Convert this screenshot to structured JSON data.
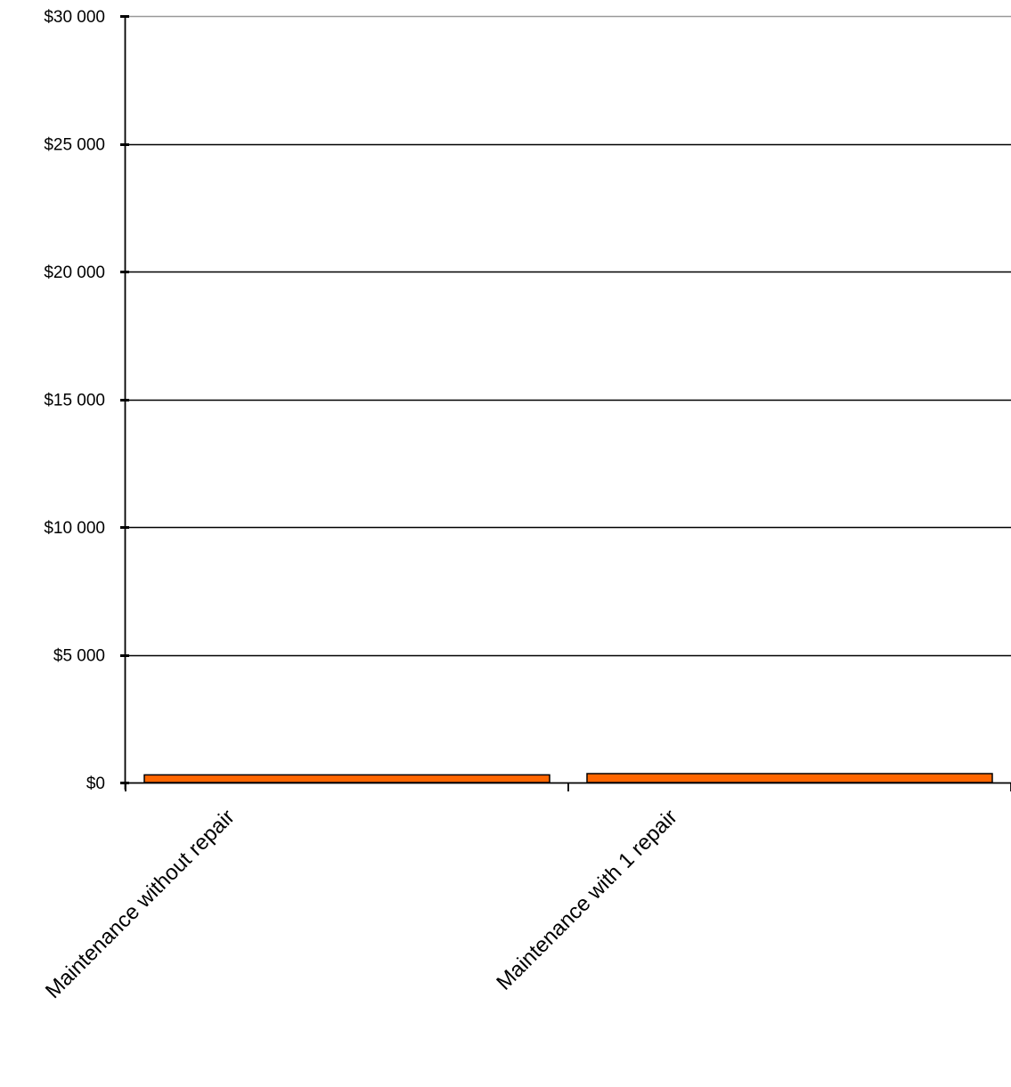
{
  "chart_data": {
    "type": "bar",
    "title": "",
    "xlabel": "",
    "ylabel": "",
    "categories": [
      "Maintenance without repair",
      "Maintenance with 1 repair"
    ],
    "series": [
      {
        "values": [
          300,
          350
        ]
      }
    ],
    "ylim": [
      0,
      30000
    ],
    "ytick_values": [
      0,
      5000,
      10000,
      15000,
      20000,
      25000,
      30000
    ],
    "ytick_labels": [
      "$0",
      "$5 000",
      "$10 000",
      "$15 000",
      "$20 000",
      "$25 000",
      "$30 000"
    ],
    "grid": true,
    "legend": "none",
    "colors": {
      "bar_fill": "#ff6600",
      "bar_stroke": "#000000",
      "gridline": "#000000",
      "top_gridline": "#999999",
      "axis": "#000000"
    }
  }
}
